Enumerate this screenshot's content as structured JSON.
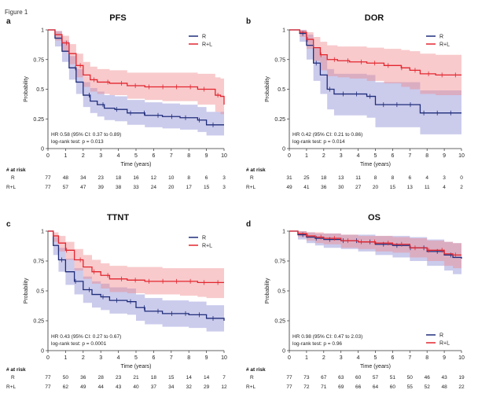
{
  "figure_label": "Figure 1",
  "colors": {
    "R": "#1f2d7a",
    "R+L": "#e3262f",
    "R_band": "#8c8cd4",
    "RL_band": "#f08a8e"
  },
  "chart_data": [
    {
      "type": "line",
      "panel": "a",
      "title": "PFS",
      "xlabel": "Time (years)",
      "ylabel": "Probability",
      "xlim": [
        0,
        10
      ],
      "ylim": [
        0,
        1
      ],
      "xticks": [
        "0",
        "1",
        "2",
        "3",
        "4",
        "5",
        "6",
        "7",
        "8",
        "9",
        "10"
      ],
      "yticks": [
        "0",
        "0.25",
        "0.5",
        "0.75",
        "1"
      ],
      "legend_position": "top-right",
      "stats": [
        "HR 0.58 (95% CI: 0.37 to 0.89)",
        "log-rank test: p = 0.013"
      ],
      "series": [
        {
          "name": "R",
          "x": [
            0,
            0.4,
            0.8,
            1.2,
            1.6,
            2.0,
            2.4,
            2.8,
            3.2,
            3.8,
            4.5,
            5.5,
            6.5,
            7.5,
            8.5,
            9.0,
            10.0
          ],
          "y": [
            1,
            0.93,
            0.82,
            0.68,
            0.56,
            0.45,
            0.4,
            0.37,
            0.34,
            0.33,
            0.3,
            0.28,
            0.27,
            0.26,
            0.24,
            0.2,
            0.2
          ],
          "lower": [
            1,
            0.86,
            0.73,
            0.58,
            0.46,
            0.35,
            0.3,
            0.27,
            0.24,
            0.23,
            0.2,
            0.18,
            0.17,
            0.16,
            0.14,
            0.11,
            0.11
          ],
          "upper": [
            1,
            0.99,
            0.91,
            0.78,
            0.67,
            0.56,
            0.51,
            0.48,
            0.45,
            0.44,
            0.41,
            0.39,
            0.38,
            0.37,
            0.35,
            0.31,
            0.31
          ]
        },
        {
          "name": "R+L",
          "x": [
            0,
            0.4,
            0.8,
            1.2,
            1.6,
            2.0,
            2.4,
            2.8,
            3.5,
            4.5,
            5.5,
            6.5,
            7.5,
            8.5,
            9.5,
            9.8,
            10.0
          ],
          "y": [
            1,
            0.96,
            0.89,
            0.8,
            0.7,
            0.62,
            0.58,
            0.56,
            0.55,
            0.53,
            0.52,
            0.52,
            0.52,
            0.5,
            0.45,
            0.44,
            0.37
          ],
          "lower": [
            1,
            0.91,
            0.82,
            0.71,
            0.6,
            0.52,
            0.48,
            0.46,
            0.45,
            0.42,
            0.41,
            0.4,
            0.4,
            0.37,
            0.31,
            0.29,
            0.22
          ],
          "upper": [
            1,
            0.99,
            0.95,
            0.88,
            0.8,
            0.73,
            0.69,
            0.67,
            0.66,
            0.64,
            0.64,
            0.64,
            0.64,
            0.63,
            0.6,
            0.59,
            0.53
          ]
        }
      ],
      "risk_table": {
        "header": "# at risk",
        "rows": [
          {
            "label": "R",
            "values": [
              "77",
              "48",
              "34",
              "23",
              "18",
              "16",
              "12",
              "10",
              "8",
              "6",
              "3"
            ]
          },
          {
            "label": "R+L",
            "values": [
              "77",
              "57",
              "47",
              "39",
              "38",
              "33",
              "24",
              "20",
              "17",
              "15",
              "3"
            ]
          }
        ]
      }
    },
    {
      "type": "line",
      "panel": "b",
      "title": "DOR",
      "xlabel": "Time (years)",
      "ylabel": "Probability",
      "xlim": [
        0,
        10
      ],
      "ylim": [
        0,
        1
      ],
      "xticks": [
        "0",
        "1",
        "2",
        "3",
        "4",
        "5",
        "6",
        "7",
        "8",
        "9",
        "10"
      ],
      "yticks": [
        "0",
        "0.25",
        "0.5",
        "0.75",
        "1"
      ],
      "legend_position": "top-right",
      "stats": [
        "HR 0.42 (95% CI: 0.21 to 0.86)",
        "log-rank test: p = 0.014"
      ],
      "series": [
        {
          "name": "R",
          "x": [
            0,
            0.6,
            1.0,
            1.4,
            1.8,
            2.2,
            2.6,
            3.0,
            3.6,
            4.5,
            5.0,
            6.5,
            7.6,
            8.5,
            10.0
          ],
          "y": [
            1,
            0.97,
            0.87,
            0.72,
            0.62,
            0.5,
            0.46,
            0.46,
            0.46,
            0.44,
            0.37,
            0.37,
            0.3,
            0.3,
            0.3
          ],
          "lower": [
            1,
            0.9,
            0.75,
            0.57,
            0.46,
            0.33,
            0.28,
            0.28,
            0.28,
            0.26,
            0.18,
            0.18,
            0.12,
            0.12,
            0.12
          ],
          "upper": [
            1,
            1,
            0.96,
            0.85,
            0.78,
            0.67,
            0.63,
            0.63,
            0.63,
            0.62,
            0.56,
            0.56,
            0.49,
            0.49,
            0.49
          ]
        },
        {
          "name": "R+L",
          "x": [
            0,
            0.6,
            1.0,
            1.4,
            1.8,
            2.2,
            2.8,
            3.5,
            4.5,
            5.5,
            6.5,
            7.0,
            7.6,
            8.5,
            10.0
          ],
          "y": [
            1,
            0.98,
            0.92,
            0.85,
            0.79,
            0.75,
            0.74,
            0.73,
            0.72,
            0.7,
            0.68,
            0.66,
            0.63,
            0.62,
            0.62
          ],
          "lower": [
            1,
            0.94,
            0.84,
            0.74,
            0.66,
            0.61,
            0.6,
            0.59,
            0.57,
            0.55,
            0.52,
            0.5,
            0.46,
            0.45,
            0.45
          ],
          "upper": [
            1,
            1,
            0.98,
            0.94,
            0.9,
            0.87,
            0.86,
            0.86,
            0.85,
            0.84,
            0.83,
            0.82,
            0.8,
            0.79,
            0.79
          ]
        }
      ],
      "risk_table": {
        "header": "# at risk",
        "rows": [
          {
            "label": "R",
            "values": [
              "31",
              "25",
              "18",
              "13",
              "11",
              "8",
              "8",
              "6",
              "4",
              "3",
              "0"
            ]
          },
          {
            "label": "R+L",
            "values": [
              "49",
              "41",
              "36",
              "30",
              "27",
              "20",
              "15",
              "13",
              "11",
              "4",
              "2"
            ]
          }
        ]
      }
    },
    {
      "type": "line",
      "panel": "c",
      "title": "TTNT",
      "xlabel": "Time (years)",
      "ylabel": "Probability",
      "xlim": [
        0,
        10
      ],
      "ylim": [
        0,
        1
      ],
      "xticks": [
        "0",
        "1",
        "2",
        "3",
        "4",
        "5",
        "6",
        "7",
        "8",
        "9",
        "10"
      ],
      "yticks": [
        "0",
        "0.25",
        "0.5",
        "0.75",
        "1"
      ],
      "legend_position": "top-right",
      "stats": [
        "HR 0.43 (95% CI: 0.27 to 0.67)",
        "log-rank test: p = 0.0001"
      ],
      "series": [
        {
          "name": "R",
          "x": [
            0,
            0.3,
            0.6,
            1.0,
            1.5,
            2.0,
            2.5,
            3.0,
            3.5,
            4.5,
            5.0,
            5.5,
            6.5,
            7.0,
            8.0,
            9.0,
            10.0
          ],
          "y": [
            1,
            0.88,
            0.76,
            0.66,
            0.58,
            0.51,
            0.47,
            0.45,
            0.42,
            0.41,
            0.36,
            0.33,
            0.31,
            0.31,
            0.3,
            0.27,
            0.25
          ],
          "lower": [
            1,
            0.8,
            0.66,
            0.55,
            0.47,
            0.4,
            0.36,
            0.34,
            0.31,
            0.3,
            0.25,
            0.22,
            0.2,
            0.2,
            0.19,
            0.16,
            0.14
          ],
          "upper": [
            1,
            0.95,
            0.86,
            0.77,
            0.69,
            0.62,
            0.58,
            0.56,
            0.53,
            0.52,
            0.47,
            0.44,
            0.42,
            0.42,
            0.41,
            0.38,
            0.36
          ]
        },
        {
          "name": "R+L",
          "x": [
            0,
            0.3,
            0.6,
            1.0,
            1.5,
            2.0,
            2.5,
            3.0,
            3.5,
            4.5,
            5.5,
            6.5,
            7.5,
            8.5,
            9.0,
            10.0
          ],
          "y": [
            1,
            0.96,
            0.9,
            0.84,
            0.76,
            0.7,
            0.66,
            0.63,
            0.6,
            0.59,
            0.58,
            0.58,
            0.58,
            0.57,
            0.57,
            0.57
          ],
          "lower": [
            1,
            0.91,
            0.83,
            0.76,
            0.67,
            0.6,
            0.56,
            0.52,
            0.49,
            0.48,
            0.47,
            0.47,
            0.46,
            0.45,
            0.44,
            0.44
          ],
          "upper": [
            1,
            0.99,
            0.96,
            0.91,
            0.85,
            0.8,
            0.76,
            0.73,
            0.71,
            0.7,
            0.7,
            0.69,
            0.69,
            0.69,
            0.69,
            0.69
          ]
        }
      ],
      "risk_table": {
        "header": "# at risk",
        "rows": [
          {
            "label": "R",
            "values": [
              "77",
              "50",
              "36",
              "28",
              "23",
              "21",
              "18",
              "15",
              "14",
              "14",
              "7"
            ]
          },
          {
            "label": "R+L",
            "values": [
              "77",
              "62",
              "49",
              "44",
              "43",
              "40",
              "37",
              "34",
              "32",
              "29",
              "12"
            ]
          }
        ]
      }
    },
    {
      "type": "line",
      "panel": "d",
      "title": "OS",
      "xlabel": "Time (years)",
      "ylabel": "Probability",
      "xlim": [
        0,
        10
      ],
      "ylim": [
        0,
        1
      ],
      "xticks": [
        "0",
        "1",
        "2",
        "3",
        "4",
        "5",
        "6",
        "7",
        "8",
        "9",
        "10"
      ],
      "yticks": [
        "0",
        "0.25",
        "0.5",
        "0.75",
        "1"
      ],
      "legend_position": "bottom-right",
      "stats": [
        "HR 0.98 (95% CI: 0.47 to 2.03)",
        "log-rank test: p = 0.96"
      ],
      "series": [
        {
          "name": "R",
          "x": [
            0,
            0.5,
            1.0,
            1.5,
            2.0,
            3.0,
            4.0,
            5.0,
            6.0,
            7.0,
            8.0,
            9.0,
            9.5,
            10.0
          ],
          "y": [
            1,
            0.97,
            0.95,
            0.94,
            0.93,
            0.92,
            0.91,
            0.89,
            0.88,
            0.86,
            0.83,
            0.8,
            0.78,
            0.77
          ],
          "lower": [
            1,
            0.93,
            0.9,
            0.88,
            0.86,
            0.85,
            0.83,
            0.8,
            0.78,
            0.75,
            0.71,
            0.67,
            0.64,
            0.62
          ],
          "upper": [
            1,
            1,
            0.99,
            0.98,
            0.98,
            0.97,
            0.97,
            0.96,
            0.96,
            0.95,
            0.93,
            0.91,
            0.9,
            0.89
          ]
        },
        {
          "name": "R+L",
          "x": [
            0,
            0.5,
            1.0,
            1.5,
            2.0,
            3.0,
            4.0,
            5.0,
            6.0,
            7.0,
            8.0,
            9.0,
            9.5,
            10.0
          ],
          "y": [
            1,
            0.98,
            0.96,
            0.95,
            0.94,
            0.92,
            0.91,
            0.9,
            0.89,
            0.86,
            0.84,
            0.81,
            0.8,
            0.8
          ],
          "lower": [
            1,
            0.95,
            0.92,
            0.9,
            0.89,
            0.86,
            0.85,
            0.83,
            0.82,
            0.78,
            0.75,
            0.71,
            0.69,
            0.68
          ],
          "upper": [
            1,
            1,
            0.99,
            0.99,
            0.98,
            0.97,
            0.96,
            0.96,
            0.95,
            0.94,
            0.92,
            0.91,
            0.9,
            0.9
          ]
        }
      ],
      "risk_table": {
        "header": "# at risk",
        "rows": [
          {
            "label": "R",
            "values": [
              "77",
              "73",
              "67",
              "63",
              "60",
              "57",
              "51",
              "50",
              "46",
              "43",
              "19"
            ]
          },
          {
            "label": "R+L",
            "values": [
              "77",
              "72",
              "71",
              "69",
              "66",
              "64",
              "60",
              "55",
              "52",
              "48",
              "22"
            ]
          }
        ]
      }
    }
  ]
}
